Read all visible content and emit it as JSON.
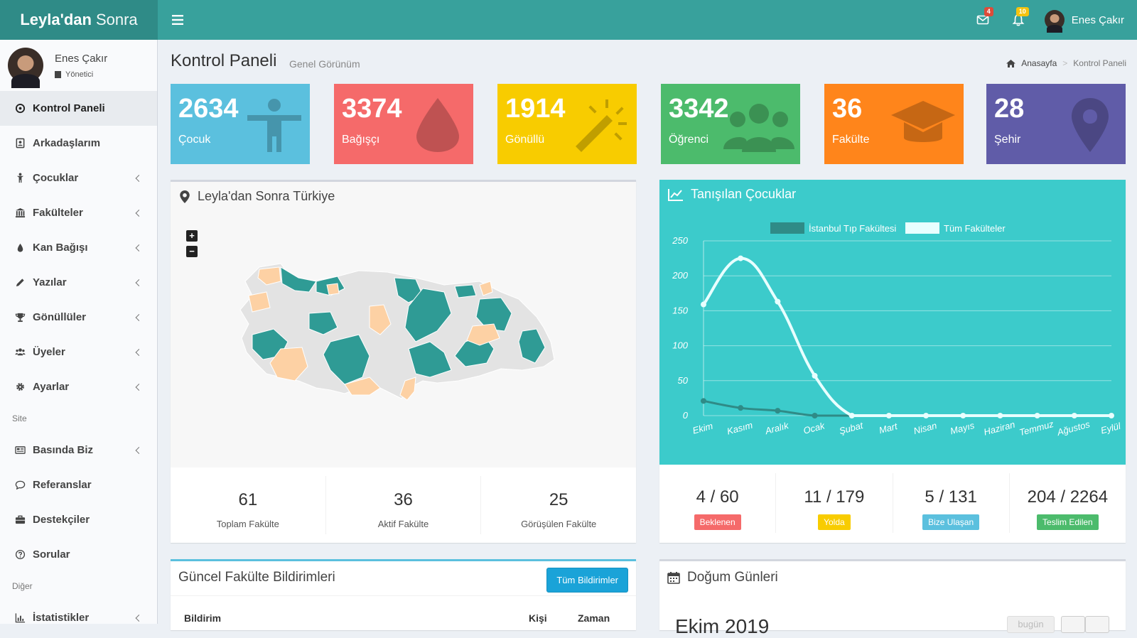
{
  "brand": {
    "bold": "Leyla'dan",
    "light": "Sonra"
  },
  "header": {
    "mail_badge": "4",
    "bell_badge": "10",
    "user_name": "Enes Çakır"
  },
  "sidebar": {
    "user_name": "Enes Çakır",
    "user_role": "Yönetici",
    "items": [
      {
        "label": "Kontrol Paneli"
      },
      {
        "label": "Arkadaşlarım"
      },
      {
        "label": "Çocuklar"
      },
      {
        "label": "Fakülteler"
      },
      {
        "label": "Kan Bağışı"
      },
      {
        "label": "Yazılar"
      },
      {
        "label": "Gönüllüler"
      },
      {
        "label": "Üyeler"
      },
      {
        "label": "Ayarlar"
      }
    ],
    "site_header": "Site",
    "site_items": [
      {
        "label": "Basında Biz"
      },
      {
        "label": "Referanslar"
      },
      {
        "label": "Destekçiler"
      },
      {
        "label": "Sorular"
      }
    ],
    "other_header": "Diğer",
    "other_items": [
      {
        "label": "İstatistikler"
      }
    ]
  },
  "page": {
    "title": "Kontrol Paneli",
    "subtitle": "Genel Görünüm"
  },
  "breadcrumb": {
    "home": "Anasayfa",
    "current": "Kontrol Paneli"
  },
  "info_boxes": [
    {
      "value": "2634",
      "label": "Çocuk",
      "color": "#5bc0de"
    },
    {
      "value": "3374",
      "label": "Bağışçı",
      "color": "#f56a6a"
    },
    {
      "value": "1914",
      "label": "Gönüllü",
      "color": "#f8cc00"
    },
    {
      "value": "3342",
      "label": "Öğrenci",
      "color": "#4cbb6c"
    },
    {
      "value": "36",
      "label": "Fakülte",
      "color": "#ff851b"
    },
    {
      "value": "28",
      "label": "Şehir",
      "color": "#605ca8"
    }
  ],
  "map_box": {
    "title": "Leyla'dan Sonra Türkiye",
    "zoom_in": "+",
    "zoom_out": "−",
    "stats": [
      {
        "value": "61",
        "label": "Toplam Fakülte"
      },
      {
        "value": "36",
        "label": "Aktif Fakülte"
      },
      {
        "value": "25",
        "label": "Görüşülen Fakülte"
      }
    ]
  },
  "chart_box": {
    "title": "Tanışılan Çocuklar",
    "stats": [
      {
        "value": "4 / 60",
        "label": "Beklenen",
        "color": "#f56a6a"
      },
      {
        "value": "11 / 179",
        "label": "Yolda",
        "color": "#f8cc00"
      },
      {
        "value": "5 / 131",
        "label": "Bize Ulaşan",
        "color": "#5bc0de"
      },
      {
        "value": "204 / 2264",
        "label": "Teslim Edilen",
        "color": "#4cbb6c"
      }
    ]
  },
  "chart_data": {
    "type": "line",
    "title": "Tanışılan Çocuklar",
    "categories": [
      "Ekim",
      "Kasım",
      "Aralık",
      "Ocak",
      "Şubat",
      "Mart",
      "Nisan",
      "Mayıs",
      "Haziran",
      "Temmuz",
      "Ağustos",
      "Eylül"
    ],
    "series": [
      {
        "name": "İstanbul Tıp Fakültesi",
        "color": "#2f8b87",
        "values": [
          21,
          11,
          7,
          0,
          0,
          0,
          0,
          0,
          0,
          0,
          0,
          0
        ]
      },
      {
        "name": "Tüm Fakülteler",
        "color": "#e8ffff",
        "values": [
          159,
          225,
          163,
          57,
          0,
          0,
          0,
          0,
          0,
          0,
          0,
          0
        ]
      }
    ],
    "yticks": [
      "0",
      "50",
      "100",
      "150",
      "200",
      "250"
    ],
    "ylim": [
      0,
      250
    ],
    "legend": "top-center"
  },
  "notif_box": {
    "title": "Güncel Fakülte Bildirimleri",
    "button": "Tüm Bildirimler",
    "columns": [
      "Bildirim",
      "Kişi",
      "Zaman"
    ]
  },
  "bday_box": {
    "title": "Doğum Günleri",
    "month": "Ekim 2019",
    "today": "bugün"
  }
}
